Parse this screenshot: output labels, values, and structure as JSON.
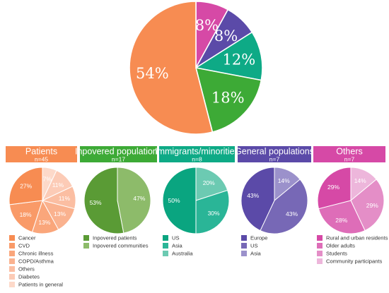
{
  "chart_data": [
    {
      "type": "pie",
      "title": "",
      "slices": [
        {
          "label": "",
          "value": 54,
          "display": "54%",
          "color": "#f78c52"
        },
        {
          "label": "",
          "value": 18,
          "display": "18%",
          "color": "#3daa36"
        },
        {
          "label": "",
          "value": 12,
          "display": "12%",
          "color": "#0eaa86"
        },
        {
          "label": "",
          "value": 8,
          "display": "8%",
          "color": "#5b4aa8"
        },
        {
          "label": "",
          "value": 8,
          "display": "8%",
          "color": "#d649a6"
        }
      ]
    },
    {
      "type": "pie",
      "title": "Patients",
      "n_label": "n=45",
      "header_color": "#f78c52",
      "slices": [
        {
          "label": "Cancer",
          "value": 27,
          "display": "27%",
          "color": "#f78c52"
        },
        {
          "label": "CVD",
          "value": 18,
          "display": "18%",
          "color": "#f99a68"
        },
        {
          "label": "Chronic illness",
          "value": 13,
          "display": "13%",
          "color": "#faa67b"
        },
        {
          "label": "COPD/Asthma",
          "value": 13,
          "display": "13%",
          "color": "#fab28f"
        },
        {
          "label": "Others",
          "value": 11,
          "display": "11%",
          "color": "#fbbea2"
        },
        {
          "label": "Diabetes",
          "value": 11,
          "display": "11%",
          "color": "#fccbb6"
        },
        {
          "label": "Patients in general",
          "value": 7,
          "display": "7%",
          "color": "#fdd9c9"
        }
      ]
    },
    {
      "type": "pie",
      "title": "Inpovered populations",
      "n_label": "n=17",
      "header_color": "#3daa36",
      "slices": [
        {
          "label": "Inpovered patients",
          "value": 53,
          "display": "53%",
          "color": "#5a9b35"
        },
        {
          "label": "Inpovered communities",
          "value": 47,
          "display": "47%",
          "color": "#8dbb6a"
        }
      ]
    },
    {
      "type": "pie",
      "title": "Immigrants/minorities",
      "n_label": "n=8",
      "header_color": "#0eaa86",
      "slices": [
        {
          "label": "US",
          "value": 50,
          "display": "50%",
          "color": "#0aa580"
        },
        {
          "label": "Asia",
          "value": 30,
          "display": "30%",
          "color": "#2ab597"
        },
        {
          "label": "Australia",
          "value": 20,
          "display": "20%",
          "color": "#6ccab2"
        }
      ]
    },
    {
      "type": "pie",
      "title": "General populations",
      "n_label": "n=7",
      "header_color": "#5b4aa8",
      "slices": [
        {
          "label": "Europe",
          "value": 43,
          "display": "43%",
          "color": "#5b4aa8"
        },
        {
          "label": "US",
          "value": 43,
          "display": "43%",
          "color": "#7768b6"
        },
        {
          "label": "Asia",
          "value": 14,
          "display": "14%",
          "color": "#9b91cb"
        }
      ]
    },
    {
      "type": "pie",
      "title": "Others",
      "n_label": "n=7",
      "header_color": "#d649a6",
      "slices": [
        {
          "label": "Rural and urban residents",
          "value": 29,
          "display": "29%",
          "color": "#d649a6"
        },
        {
          "label": "Older adults",
          "value": 28,
          "display": "28%",
          "color": "#de6db8"
        },
        {
          "label": "Students",
          "value": 29,
          "display": "29%",
          "color": "#e48ec7"
        },
        {
          "label": "Community participants",
          "value": 14,
          "display": "14%",
          "color": "#edb6db"
        }
      ]
    }
  ]
}
